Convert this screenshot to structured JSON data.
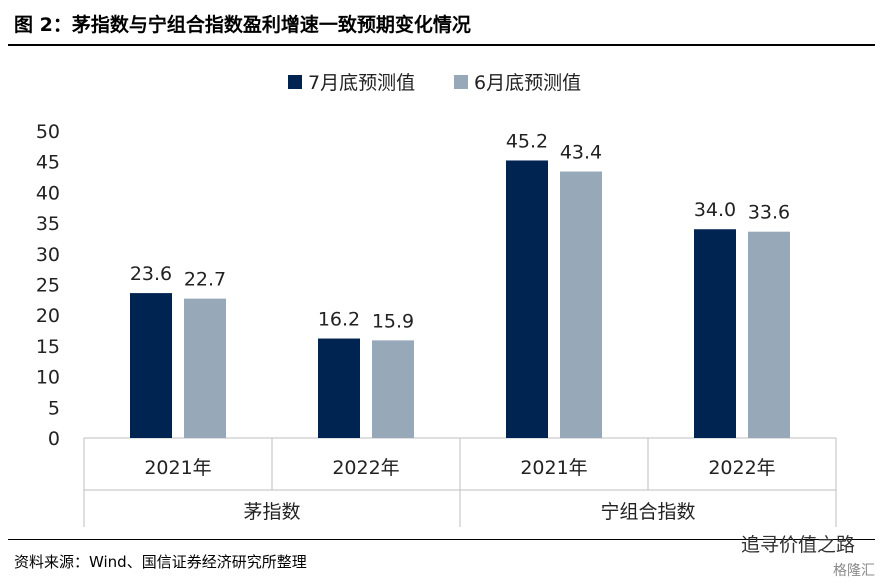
{
  "title": "图 2：茅指数与宁组合指数盈利增速一致预期变化情况",
  "source": "资料来源：Wind、国信证券经济研究所整理",
  "watermark": "追寻价值之路",
  "watermark_sub": "格隆汇",
  "colors": {
    "series1": "#002452",
    "series2": "#97A8B8",
    "axis": "#bfbfbf"
  },
  "chart_data": {
    "type": "bar",
    "groups": [
      "茅指数",
      "宁组合指数"
    ],
    "categories": [
      "2021年",
      "2022年",
      "2021年",
      "2022年"
    ],
    "category_group": [
      0,
      0,
      1,
      1
    ],
    "series": [
      {
        "name": "7月底预测值",
        "values": [
          23.6,
          16.2,
          45.2,
          34.0
        ],
        "labels": [
          "23.6",
          "16.2",
          "45.2",
          "34.0"
        ]
      },
      {
        "name": "6月底预测值",
        "values": [
          22.7,
          15.9,
          43.4,
          33.6
        ],
        "labels": [
          "22.7",
          "15.9",
          "43.4",
          "33.6"
        ]
      }
    ],
    "ylim": [
      0,
      50
    ],
    "yticks": [
      "0",
      "5",
      "10",
      "15",
      "20",
      "25",
      "30",
      "35",
      "40",
      "45",
      "50"
    ],
    "grid": false,
    "legend": "top-center"
  }
}
